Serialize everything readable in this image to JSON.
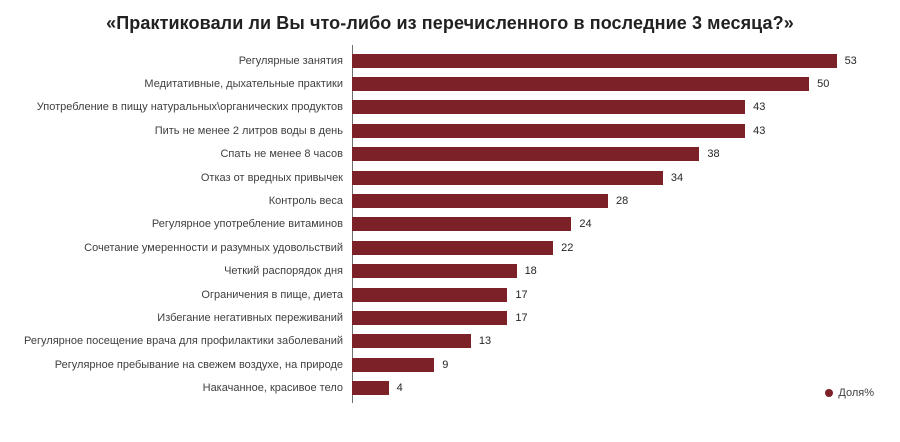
{
  "title": "«Практиковали ли Вы что-либо из перечисленного в последние 3 месяца?»",
  "colors": {
    "bar": "#7B2127",
    "label_text": "#3f3f3f",
    "title_text": "#212121"
  },
  "legend": {
    "label": "Доля%",
    "position": "bottom-right",
    "marker": "circle-icon"
  },
  "chart_data": {
    "type": "bar",
    "orientation": "horizontal",
    "title": "«Практиковали ли Вы что-либо из перечисленного в последние 3 месяца?»",
    "xlabel": "",
    "ylabel": "",
    "legend": "Доля%",
    "grid": false,
    "xlim": [
      0,
      56
    ],
    "categories": [
      "Регулярные занятия",
      "Медитативные, дыхательные практики",
      "Употребление в пищу натуральных\\органических продуктов",
      "Пить не менее 2 литров воды в день",
      "Спать не менее 8 часов",
      "Отказ от вредных привычек",
      "Контроль веса",
      "Регулярное употребление витаминов",
      "Сочетание умеренности и разумных удовольствий",
      "Четкий распорядок дня",
      "Ограничения в пище, диета",
      "Избегание негативных переживаний",
      "Регулярное посещение врача для профилактики заболеваний",
      "Регулярное пребывание на свежем воздухе, на природе",
      "Накачанное, красивое тело"
    ],
    "values": [
      53,
      50,
      43,
      43,
      38,
      34,
      28,
      24,
      22,
      18,
      17,
      17,
      13,
      9,
      4
    ]
  }
}
